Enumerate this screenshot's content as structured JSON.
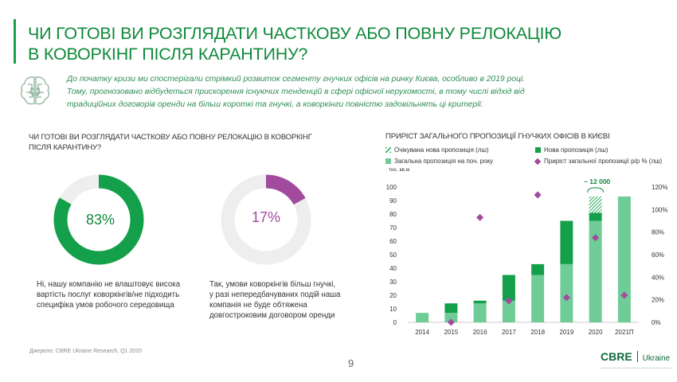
{
  "header": {
    "title_line1": "ЧИ ГОТОВІ ВИ РОЗГЛЯДАТИ ЧАСТКОВУ АБО ПОВНУ РЕЛОКАЦІЮ",
    "title_line2": "В КОВОРКІНГ ПІСЛЯ КАРАНТИНУ?"
  },
  "intro": {
    "icon": "brain-icon",
    "line1": "До початку кризи ми спостерігали стрімкий розвиток сегменту гнучких офісів на ринку Києва, особливо в 2019 році.",
    "line2": "Тому, прогнозовано відбудеться прискорення існуючих тенденцій в сфері офісної нерухомості, в тому числі відхід від",
    "line3": "традиційних договорів оренди на більш короткі та гнучкі, а коворкінги повністю задовільнять ці критерії."
  },
  "survey": {
    "title_line1": "ЧИ ГОТОВІ ВИ РОЗГЛЯДАТИ ЧАСТКОВУ АБО ПОВНУ РЕЛОКАЦІЮ В КОВОРКІНГ",
    "title_line2": "ПІСЛЯ КАРАНТИНУ?",
    "no": {
      "percent": 83,
      "label": "83%",
      "color": "#14a04a",
      "text_line1": "Ні, нашу компанію не влаштовує висока",
      "text_line2": "вартість послуг коворкінгів/не підходить",
      "text_line3": "специфіка умов робочого середовища"
    },
    "yes": {
      "percent": 17,
      "label": "17%",
      "color": "#a24b9e",
      "text_line1": "Так, умови коворкінгів більш гнучкі,",
      "text_line2": "у разі непередбачуваних подій наша",
      "text_line3": "компанія не буде обтяжена",
      "text_line4": "довгостроковим договором оренди"
    },
    "track_color": "#eeeeee"
  },
  "chart_data": {
    "type": "bar",
    "title": "ПРИРІСТ ЗАГАЛЬНОГО ПРОПОЗИЦІЇ ГНУЧКИХ ОФІСІВ В КИЄВІ",
    "ylabel": "тис. кв.м",
    "ylim": [
      0,
      100
    ],
    "y2lim": [
      0,
      120
    ],
    "y_ticks": [
      "0",
      "10",
      "20",
      "30",
      "40",
      "50",
      "60",
      "70",
      "80",
      "90",
      "100"
    ],
    "y2_ticks": [
      "0%",
      "20%",
      "40%",
      "60%",
      "80%",
      "100%",
      "120%"
    ],
    "categories": [
      "2014",
      "2015",
      "2016",
      "2017",
      "2018",
      "2019",
      "2020",
      "2021П"
    ],
    "series": [
      {
        "name": "Загальна пропозиція на поч. року",
        "color": "#6fcc96",
        "values": [
          7,
          7,
          14,
          16,
          35,
          43,
          75,
          93
        ]
      },
      {
        "name": "Нова пропозиція (лш)",
        "color": "#14a04a",
        "values": [
          0,
          7,
          2,
          19,
          8,
          32,
          6,
          0
        ]
      },
      {
        "name": "Очікувана нова пропозиція (лш)",
        "color": "#14a04a",
        "pattern": "hatch",
        "values": [
          0,
          0,
          0,
          0,
          0,
          0,
          12,
          0
        ]
      },
      {
        "name": "Приріст загальної пропозиції р/р % (лш)",
        "color": "#a24b9e",
        "axis": "right",
        "values": [
          null,
          0,
          93,
          19,
          113,
          22,
          75,
          24
        ]
      }
    ],
    "annotation": {
      "text": "~ 12 000",
      "category": "2020"
    },
    "legend": [
      "Очікувана нова пропозиція (лш)",
      "Нова пропозиція (лш)",
      "Загальна пропозиція на поч. року",
      "Приріст загальної пропозиції р/р % (лш)"
    ]
  },
  "footer": {
    "source": "Джерело: CBRE Ukraine Research, Q1 2020",
    "page_number": "9",
    "logo": "CBRE",
    "logo_sub": "Ukraine"
  }
}
